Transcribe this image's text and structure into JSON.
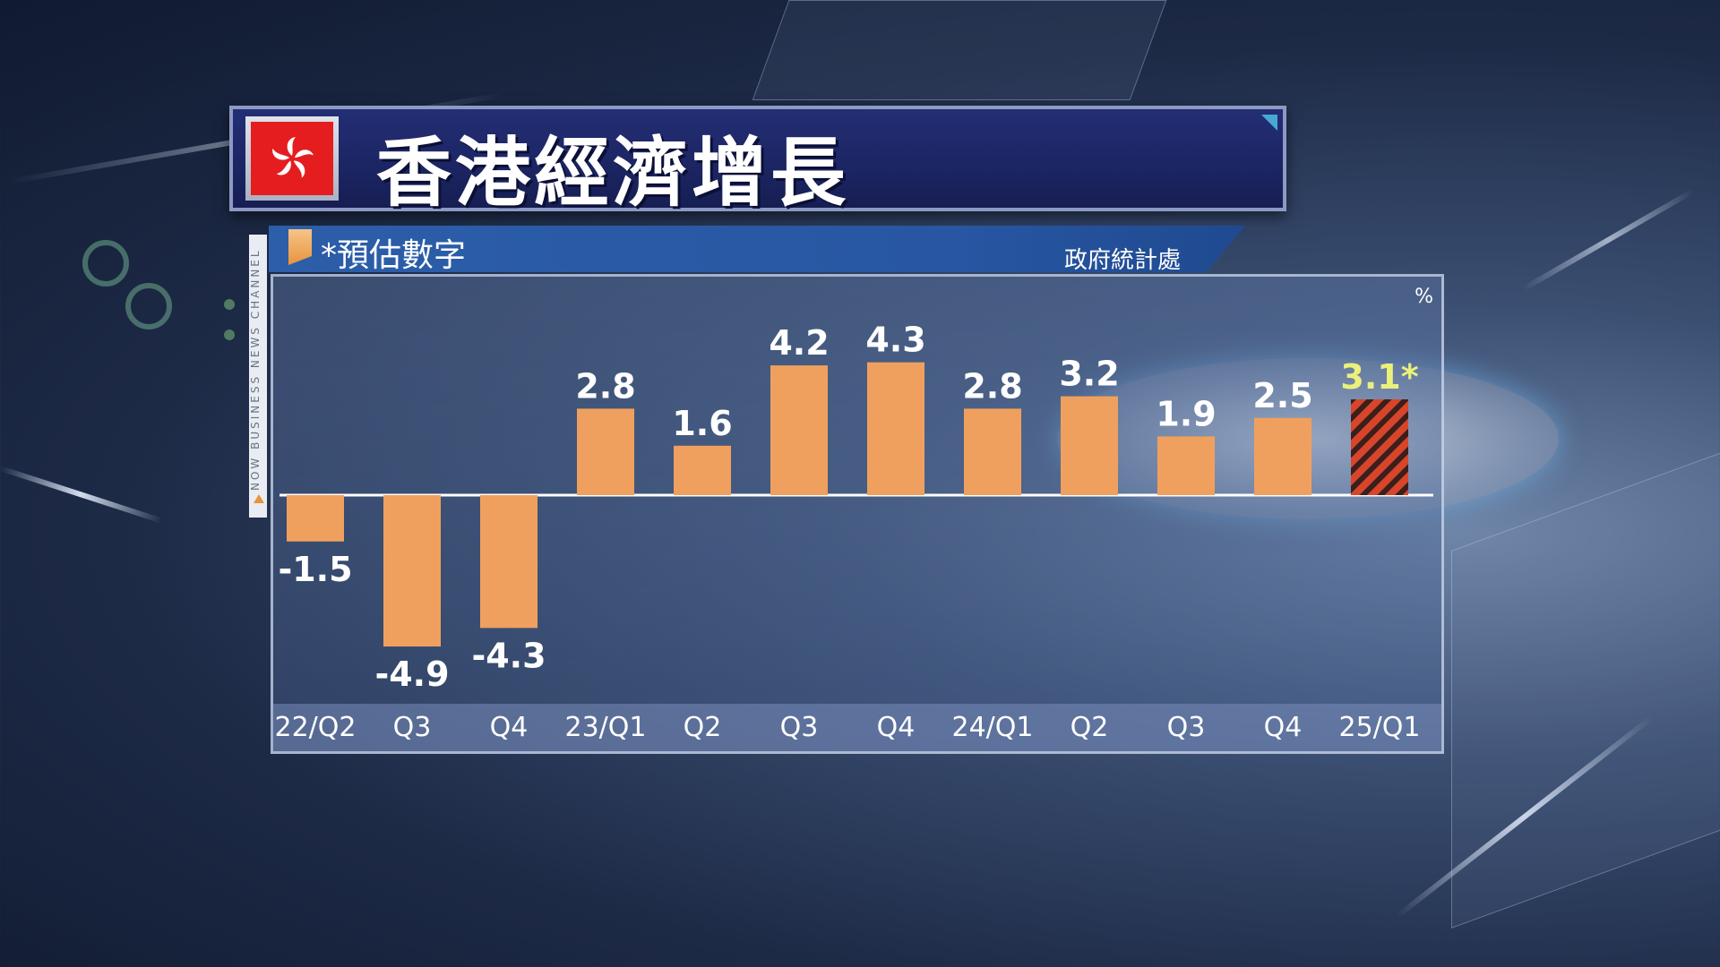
{
  "title": "香港經濟增長",
  "subtitle_left": "*預估數字",
  "source": "政府統計處",
  "side_caption": "NOW BUSINESS NEWS CHANNEL",
  "chart_data": {
    "type": "bar",
    "unit_label": "%",
    "categories": [
      "22/Q2",
      "Q3",
      "Q4",
      "23/Q1",
      "Q2",
      "Q3",
      "Q4",
      "24/Q1",
      "Q2",
      "Q3",
      "Q4",
      "25/Q1"
    ],
    "values": [
      -1.5,
      -4.9,
      -4.3,
      2.8,
      1.6,
      4.2,
      4.3,
      2.8,
      3.2,
      1.9,
      2.5,
      3.1
    ],
    "value_labels": [
      "-1.5",
      "-4.9",
      "-4.3",
      "2.8",
      "1.6",
      "4.2",
      "4.3",
      "2.8",
      "3.2",
      "1.9",
      "2.5",
      "3.1*"
    ],
    "estimated": [
      false,
      false,
      false,
      false,
      false,
      false,
      false,
      false,
      false,
      false,
      false,
      true
    ],
    "colors": {
      "bar": "#f0a05e",
      "estimate_stripe_a": "#d8452a",
      "estimate_stripe_b": "#3a1f1c",
      "label": "#ffffff",
      "estimate_label": "#eaf07a",
      "zero_line": "#ffffff"
    },
    "grid": false,
    "legend": "none"
  },
  "colors": {
    "title_bg": "#1c2563",
    "subtitle_bg": "#2c5ea9",
    "flag_red": "#e51d1f"
  }
}
